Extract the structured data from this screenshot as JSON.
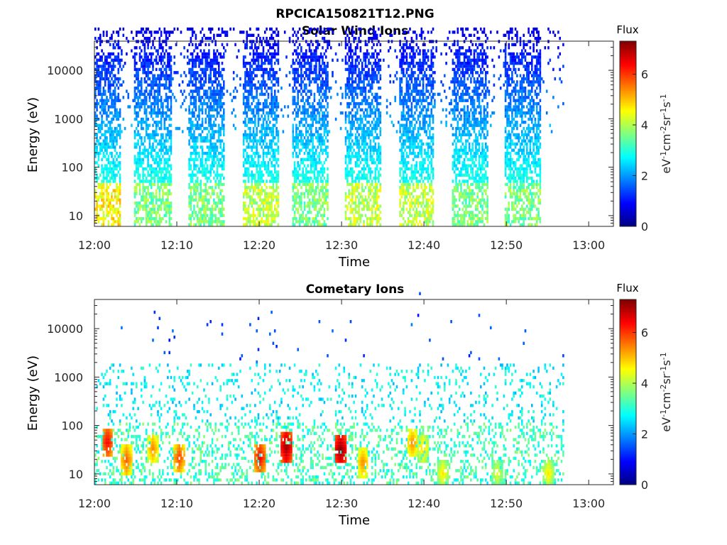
{
  "figure": {
    "title": "RPCICA150821T12.PNG"
  },
  "colors": {
    "colormap": "jet",
    "axis": "#262626",
    "background": "#ffffff"
  },
  "chart_data": [
    {
      "type": "heatmap",
      "title": "Solar Wind Ions",
      "xlabel": "Time",
      "ylabel": "Energy (eV)",
      "x_ticks": [
        "12:00",
        "12:10",
        "12:20",
        "12:30",
        "12:40",
        "12:50",
        "13:00"
      ],
      "y_ticks": [
        "10",
        "100",
        "1000",
        "10000"
      ],
      "y_scale": "log",
      "ylim": [
        6,
        40000
      ],
      "xlim_minutes": [
        0,
        63
      ],
      "data_end_minute": 57,
      "colorbar": {
        "label": "Flux",
        "unit": "eV-1cm-2sr-1s-1",
        "ticks": [
          "0",
          "2",
          "4",
          "6"
        ],
        "range": [
          0,
          7.3
        ]
      },
      "bursts": [
        {
          "center_minute": 1.0,
          "peak_flux": 5.0
        },
        {
          "center_minute": 7.0,
          "peak_flux": 4.0
        },
        {
          "center_minute": 13.5,
          "peak_flux": 4.0
        },
        {
          "center_minute": 20.0,
          "peak_flux": 4.5
        },
        {
          "center_minute": 26.0,
          "peak_flux": 4.0
        },
        {
          "center_minute": 32.5,
          "peak_flux": 4.5
        },
        {
          "center_minute": 39.0,
          "peak_flux": 4.5
        },
        {
          "center_minute": 45.5,
          "peak_flux": 4.0
        },
        {
          "center_minute": 52.0,
          "peak_flux": 4.0
        }
      ]
    },
    {
      "type": "heatmap",
      "title": "Cometary Ions",
      "xlabel": "Time",
      "ylabel": "Energy (eV)",
      "x_ticks": [
        "12:00",
        "12:10",
        "12:20",
        "12:30",
        "12:40",
        "12:50",
        "13:00"
      ],
      "y_ticks": [
        "10",
        "100",
        "1000",
        "10000"
      ],
      "y_scale": "log",
      "ylim": [
        6,
        40000
      ],
      "xlim_minutes": [
        0,
        63
      ],
      "data_end_minute": 57,
      "colorbar": {
        "label": "Flux",
        "unit": "eV-1cm-2sr-1s-1",
        "ticks": [
          "0",
          "2",
          "4",
          "6"
        ],
        "range": [
          0,
          7.3
        ]
      },
      "hotspots": [
        {
          "minute": 1.5,
          "energy": 40,
          "flux": 6.5
        },
        {
          "minute": 3.8,
          "energy": 18,
          "flux": 5.8
        },
        {
          "minute": 7.0,
          "energy": 30,
          "flux": 5.5
        },
        {
          "minute": 10.2,
          "energy": 20,
          "flux": 6.0
        },
        {
          "minute": 20.0,
          "energy": 20,
          "flux": 6.5
        },
        {
          "minute": 23.2,
          "energy": 32,
          "flux": 7.2
        },
        {
          "minute": 29.8,
          "energy": 28,
          "flux": 7.3
        },
        {
          "minute": 32.5,
          "energy": 16,
          "flux": 5.5
        },
        {
          "minute": 38.5,
          "energy": 38,
          "flux": 5.5
        },
        {
          "minute": 39.8,
          "energy": 30,
          "flux": 5.0
        },
        {
          "minute": 42.2,
          "energy": 10,
          "flux": 4.8
        },
        {
          "minute": 48.8,
          "energy": 10,
          "flux": 4.5
        },
        {
          "minute": 55.0,
          "energy": 10,
          "flux": 4.8
        }
      ]
    }
  ]
}
